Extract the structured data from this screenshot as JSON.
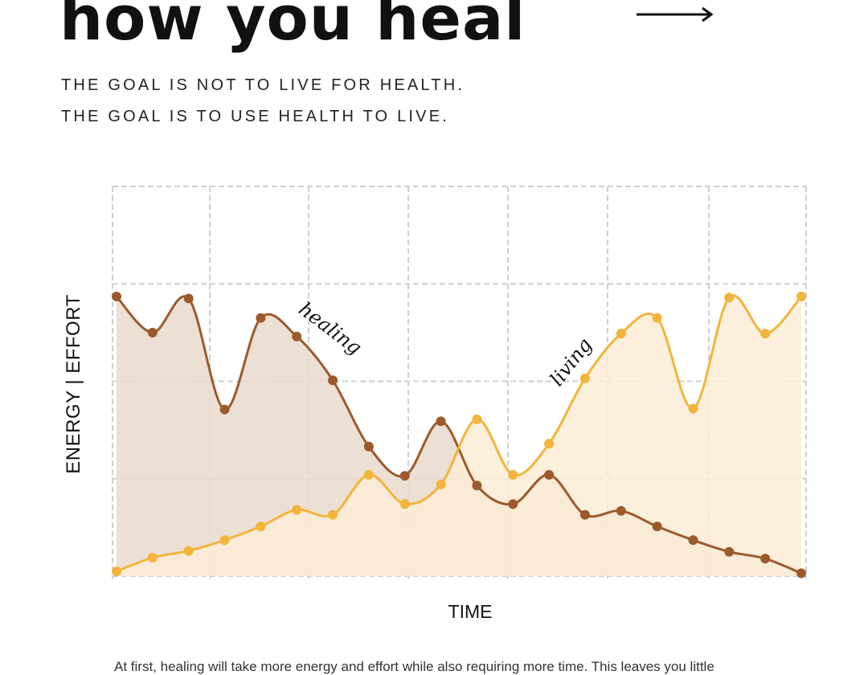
{
  "header": {
    "title": "how you heal",
    "tagline_1": "THE GOAL IS NOT TO LIVE FOR HEALTH.",
    "tagline_2": "THE GOAL IS TO USE HEALTH TO LIVE."
  },
  "chart_data": {
    "type": "area",
    "title": "",
    "xlabel": "TIME",
    "ylabel": "ENERGY | EFFORT",
    "ylim": [
      0,
      4
    ],
    "grid": true,
    "legend": "none",
    "x": [
      0,
      1,
      2,
      3,
      4,
      5,
      6,
      7,
      8,
      9,
      10,
      11,
      12,
      13,
      14,
      15,
      16,
      17,
      18,
      19
    ],
    "series": [
      {
        "name": "healing",
        "color": "#9c5a2c",
        "fill": "#e9d9cd",
        "values": [
          2.87,
          2.5,
          2.85,
          1.71,
          2.65,
          2.46,
          2.01,
          1.33,
          1.03,
          1.59,
          0.93,
          0.74,
          1.04,
          0.63,
          0.67,
          0.51,
          0.37,
          0.25,
          0.18,
          0.03
        ]
      },
      {
        "name": "living",
        "color": "#f2b43a",
        "fill": "#fbedd6",
        "values": [
          0.05,
          0.19,
          0.26,
          0.37,
          0.51,
          0.68,
          0.63,
          1.04,
          0.74,
          0.94,
          1.61,
          1.04,
          1.36,
          2.03,
          2.49,
          2.65,
          1.72,
          2.86,
          2.49,
          2.87
        ]
      }
    ]
  },
  "caption": "At first, healing will take more energy and effort while also requiring more time. This leaves you little"
}
